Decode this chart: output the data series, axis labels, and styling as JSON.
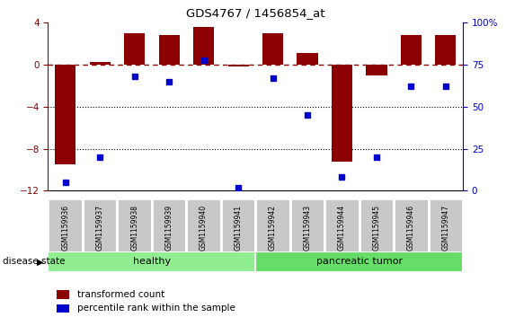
{
  "title": "GDS4767 / 1456854_at",
  "samples": [
    "GSM1159936",
    "GSM1159937",
    "GSM1159938",
    "GSM1159939",
    "GSM1159940",
    "GSM1159941",
    "GSM1159942",
    "GSM1159943",
    "GSM1159944",
    "GSM1159945",
    "GSM1159946",
    "GSM1159947"
  ],
  "transformed_count": [
    -9.5,
    0.3,
    3.0,
    2.8,
    3.6,
    -0.2,
    3.0,
    1.1,
    -9.2,
    -1.0,
    2.8,
    2.8
  ],
  "percentile_rank": [
    5,
    20,
    68,
    65,
    78,
    2,
    67,
    45,
    8,
    20,
    62,
    62
  ],
  "groups": [
    {
      "label": "healthy",
      "start": 0,
      "end": 6,
      "color": "#90ee90"
    },
    {
      "label": "pancreatic tumor",
      "start": 6,
      "end": 12,
      "color": "#66dd66"
    }
  ],
  "bar_color": "#8B0000",
  "dot_color": "#0000CC",
  "ylim_left": [
    -12,
    4
  ],
  "ylim_right": [
    0,
    100
  ],
  "yticks_left": [
    -12,
    -8,
    -4,
    0,
    4
  ],
  "yticks_right": [
    0,
    25,
    50,
    75,
    100
  ],
  "hline_y": 0,
  "dotted_lines": [
    -4,
    -8
  ],
  "right_ytick_labels": [
    "0",
    "25",
    "50",
    "75",
    "100%"
  ],
  "disease_state_label": "disease state",
  "legend_items": [
    {
      "label": "transformed count",
      "color": "#8B0000"
    },
    {
      "label": "percentile rank within the sample",
      "color": "#0000CC"
    }
  ],
  "label_box_color": "#c8c8c8",
  "label_box_edge": "#ffffff"
}
